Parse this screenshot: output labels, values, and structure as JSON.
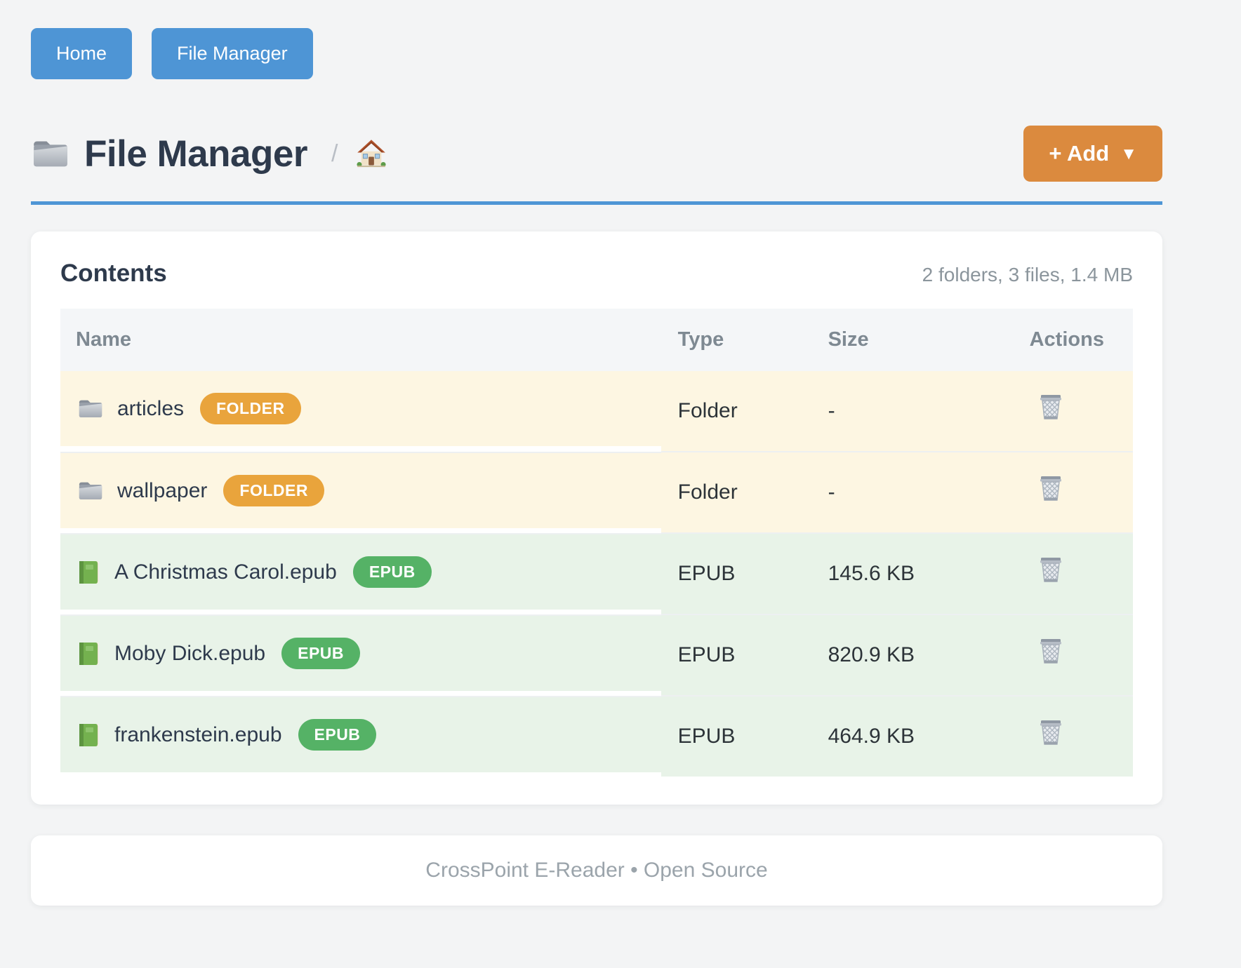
{
  "nav": {
    "home_label": "Home",
    "file_manager_label": "File Manager"
  },
  "header": {
    "title": "File Manager",
    "title_icon": "folder-icon",
    "breadcrumb_separator": "/",
    "breadcrumb_home_icon": "home-icon",
    "add_button": {
      "label": "+ Add",
      "caret": "▼"
    }
  },
  "contents": {
    "heading": "Contents",
    "summary": "2 folders, 3 files, 1.4 MB"
  },
  "table": {
    "columns": [
      "Name",
      "Type",
      "Size",
      "Actions"
    ],
    "action_icon": "trash-icon",
    "rows": [
      {
        "name": "articles",
        "badge": "FOLDER",
        "type": "Folder",
        "size": "-",
        "icon": "folder",
        "kind": "folder"
      },
      {
        "name": "wallpaper",
        "badge": "FOLDER",
        "type": "Folder",
        "size": "-",
        "icon": "folder",
        "kind": "folder"
      },
      {
        "name": "A Christmas Carol.epub",
        "badge": "EPUB",
        "type": "EPUB",
        "size": "145.6 KB",
        "icon": "book",
        "kind": "epub"
      },
      {
        "name": "Moby Dick.epub",
        "badge": "EPUB",
        "type": "EPUB",
        "size": "820.9 KB",
        "icon": "book",
        "kind": "epub"
      },
      {
        "name": "frankenstein.epub",
        "badge": "EPUB",
        "type": "EPUB",
        "size": "464.9 KB",
        "icon": "book",
        "kind": "epub"
      }
    ]
  },
  "footer": {
    "text": "CrossPoint E-Reader • Open Source"
  },
  "colors": {
    "primary_blue": "#4e95d5",
    "accent_orange": "#db8a3e",
    "badge_folder_orange": "#e9a43c",
    "badge_epub_green": "#55b266",
    "row_folder_bg": "#fdf6e2",
    "row_epub_bg": "#e8f3e8"
  }
}
